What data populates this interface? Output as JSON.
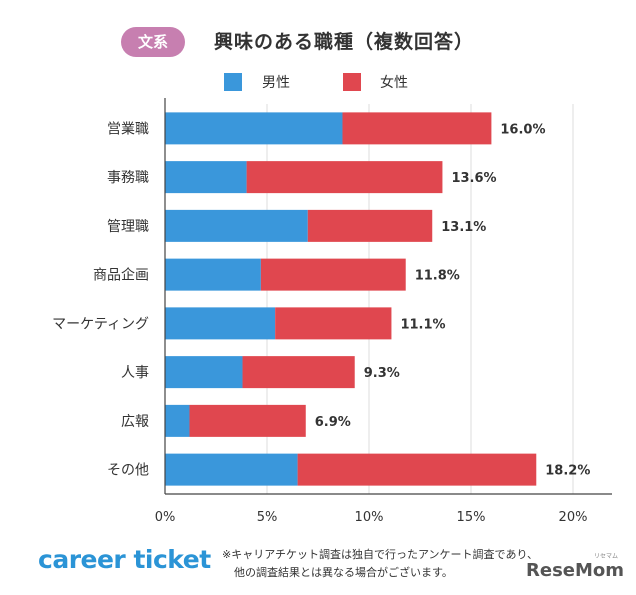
{
  "badge": "文系",
  "chart_data": {
    "type": "bar",
    "stacked": true,
    "orientation": "horizontal",
    "title": "興味のある職種（複数回答）",
    "categories": [
      "営業職",
      "事務職",
      "管理職",
      "商品企画",
      "マーケティング",
      "人事",
      "広報",
      "その他"
    ],
    "series": [
      {
        "name": "男性",
        "color": "#3a97db",
        "values": [
          8.7,
          4.0,
          7.0,
          4.7,
          5.4,
          3.8,
          1.2,
          6.5
        ]
      },
      {
        "name": "女性",
        "color": "#e0474f",
        "values": [
          7.3,
          9.6,
          6.1,
          7.1,
          5.7,
          5.5,
          5.7,
          11.7
        ]
      }
    ],
    "total_labels": [
      "16.0%",
      "13.6%",
      "13.1%",
      "11.8%",
      "11.1%",
      "9.3%",
      "6.9%",
      "18.2%"
    ],
    "totals": [
      16.0,
      13.6,
      13.1,
      11.8,
      11.1,
      9.3,
      6.9,
      18.2
    ],
    "xlim": [
      0,
      20
    ],
    "xticks": [
      0,
      5,
      10,
      15,
      20
    ],
    "xtick_labels": [
      "0%",
      "5%",
      "10%",
      "15%",
      "20%"
    ],
    "grid": true,
    "legend_position": "top"
  },
  "footer": {
    "logo": "career ticket",
    "note_lines": [
      "※キャリアチケット調査は独自で行ったアンケート調査であり、",
      "他の調査結果とは異なる場合がございます。"
    ],
    "brand": "ReseMom",
    "brand_ruby": "リセマム"
  }
}
